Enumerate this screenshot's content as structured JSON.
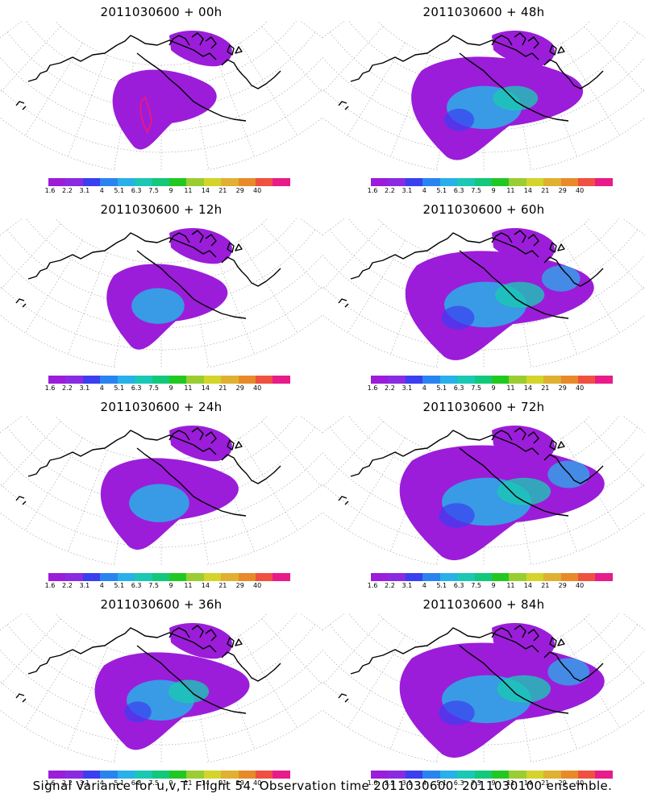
{
  "panels": [
    {
      "title": "2011030600 + 00h",
      "lead": 0,
      "contour": true
    },
    {
      "title": "2011030600 + 48h",
      "lead": 48
    },
    {
      "title": "2011030600 + 12h",
      "lead": 12
    },
    {
      "title": "2011030600 + 60h",
      "lead": 60
    },
    {
      "title": "2011030600 + 24h",
      "lead": 24
    },
    {
      "title": "2011030600 + 72h",
      "lead": 72
    },
    {
      "title": "2011030600 + 36h",
      "lead": 36
    },
    {
      "title": "2011030600 + 84h",
      "lead": 84
    }
  ],
  "colorbar": {
    "labels": [
      "1.6",
      "2.2",
      "3.1",
      "4",
      "5.1",
      "6.3",
      "7.5",
      "9",
      "11",
      "14",
      "21",
      "29",
      "40"
    ],
    "colors": [
      "#9b1dd9",
      "#8a2be2",
      "#3a3ff0",
      "#2a84f0",
      "#28b0e8",
      "#1ac8b4",
      "#12c87a",
      "#22c822",
      "#9acd32",
      "#d4d42a",
      "#e0b030",
      "#e88a2a",
      "#f05040",
      "#e81b8a"
    ]
  },
  "caption": "Signal Variance for u,v,T. Flight 54. Observation time 2011030600. 2011030100 ensemble.",
  "colors": {
    "coast": "#000000",
    "grid": "#aaaaaa",
    "contour": "#e8168a"
  }
}
